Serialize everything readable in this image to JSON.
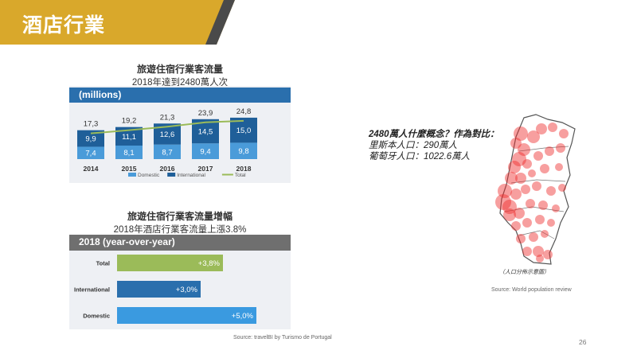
{
  "slide": {
    "title": "酒店行業",
    "page_number": "26",
    "accent_color": "#d9a82b"
  },
  "chart1": {
    "title": "旅遊住宿行業客流量",
    "subtitle": "2018年達到2480萬人次",
    "header": "(millions)",
    "source": ""
  },
  "chart2": {
    "title": "旅遊住宿行業客流量增幅",
    "subtitle": "2018年酒店行業客流量上漲3.8%",
    "header": "2018 (year-over-year)",
    "source": "Source: travelBI by Turismo de Portugal"
  },
  "callout": {
    "line1": "2480萬人什麼概念？作為對比：",
    "line2": "里斯本人口：290萬人",
    "line3": "葡萄牙人口：1022.6萬人"
  },
  "map": {
    "caption": "（人口分佈示意圖）",
    "source": "Source: World population review",
    "dot_color": "#ee2a2a"
  },
  "chart_data": [
    {
      "type": "bar",
      "stacked": true,
      "categories": [
        "2014",
        "2015",
        "2016",
        "2017",
        "2018"
      ],
      "series": [
        {
          "name": "Domestic",
          "values": [
            7.4,
            8.1,
            8.7,
            9.4,
            9.8
          ],
          "color": "#4a9bd9"
        },
        {
          "name": "International",
          "values": [
            9.9,
            11.1,
            12.6,
            14.5,
            15.0
          ],
          "color": "#1f5f99"
        }
      ],
      "totals": [
        17.3,
        19.2,
        21.3,
        23.9,
        24.8
      ],
      "total_line": {
        "name": "Total",
        "color": "#9bbb59"
      },
      "value_labels": {
        "Domestic": [
          "7,4",
          "8,1",
          "8,7",
          "9,4",
          "9,8"
        ],
        "International": [
          "9,9",
          "11,1",
          "12,6",
          "14,5",
          "15,0"
        ],
        "Total": [
          "17,3",
          "19,2",
          "21,3",
          "23,9",
          "24,8"
        ]
      },
      "ylim": [
        0,
        25
      ],
      "grid": false,
      "legend": "bottom",
      "title": "旅遊住宿行業客流量",
      "ylabel": "(millions)"
    },
    {
      "type": "bar",
      "orientation": "horizontal",
      "categories": [
        "Total",
        "International",
        "Domestic"
      ],
      "values": [
        3.8,
        3.0,
        5.0
      ],
      "value_labels": [
        "+3,8%",
        "+3,0%",
        "+5,0%"
      ],
      "colors": [
        "#9bbb59",
        "#2a6fad",
        "#3a9ae0"
      ],
      "xlim": [
        0,
        5.5
      ],
      "title": "旅遊住宿行業客流量增幅"
    }
  ]
}
